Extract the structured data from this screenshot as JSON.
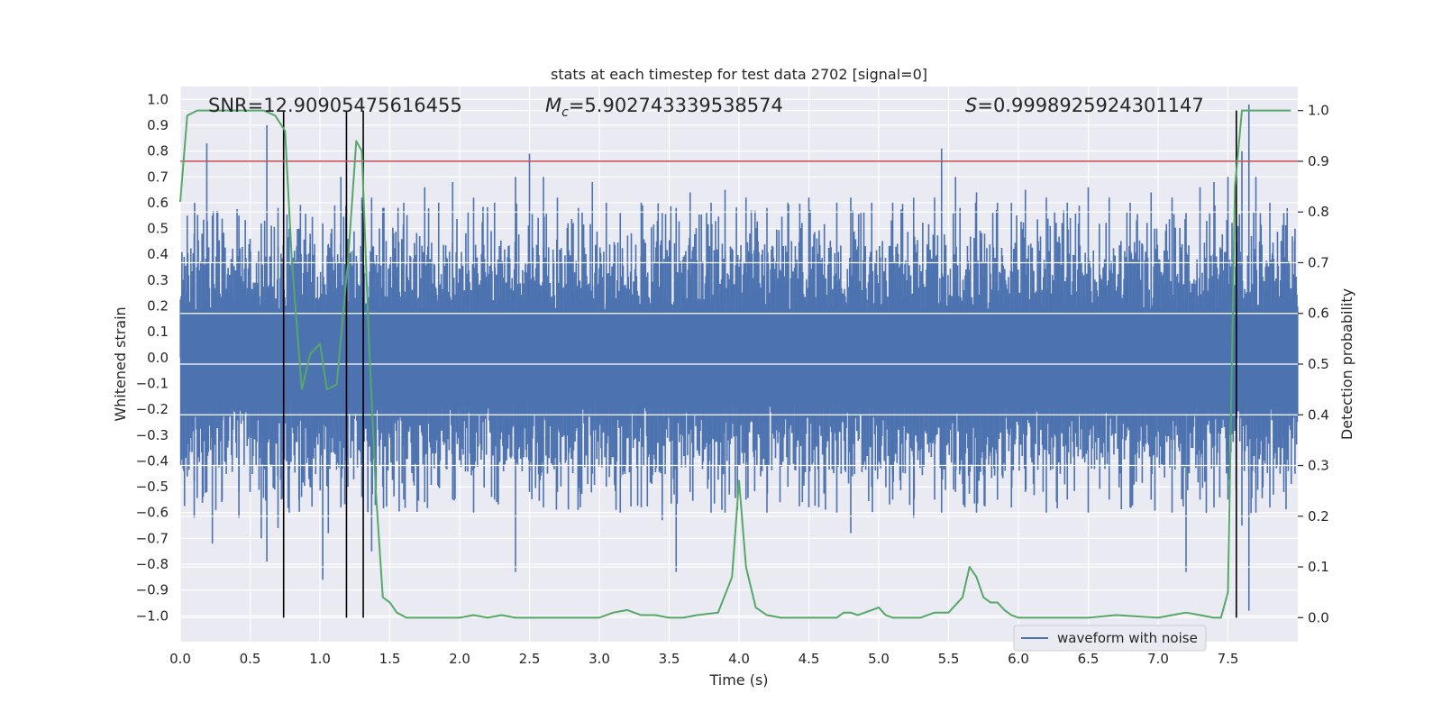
{
  "chart_data": {
    "type": "line",
    "title": "stats at each timestep for test data 2702 [signal=0]",
    "xlabel": "Time (s)",
    "ylabel_left": "Whitened strain",
    "ylabel_right": "Detection probability",
    "xlim": [
      0,
      8
    ],
    "ylim_left": [
      -1.1,
      1.05
    ],
    "ylim_right": [
      -0.0474,
      1.0474
    ],
    "x_ticks": [
      0.0,
      0.5,
      1.0,
      1.5,
      2.0,
      2.5,
      3.0,
      3.5,
      4.0,
      4.5,
      5.0,
      5.5,
      6.0,
      6.5,
      7.0,
      7.5
    ],
    "x_tick_labels": [
      "0.0",
      "0.5",
      "1.0",
      "1.5",
      "2.0",
      "2.5",
      "3.0",
      "3.5",
      "4.0",
      "4.5",
      "5.0",
      "5.5",
      "6.0",
      "6.5",
      "7.0",
      "7.5"
    ],
    "y_left_ticks": [
      1.0,
      0.9,
      0.8,
      0.7,
      0.6,
      0.5,
      0.4,
      0.3,
      0.2,
      0.1,
      0.0,
      -0.1,
      -0.2,
      -0.3,
      -0.4,
      -0.5,
      -0.6,
      -0.7,
      -0.8,
      -0.9,
      -1.0
    ],
    "y_left_tick_labels": [
      "1.0",
      "0.9",
      "0.8",
      "0.7",
      "0.6",
      "0.5",
      "0.4",
      "0.3",
      "0.2",
      "0.1",
      "0.0",
      "−0.1",
      "−0.2",
      "−0.3",
      "−0.4",
      "−0.5",
      "−0.6",
      "−0.7",
      "−0.8",
      "−0.9",
      "−1.0"
    ],
    "y_right_ticks": [
      1.0,
      0.9,
      0.8,
      0.7,
      0.6,
      0.5,
      0.4,
      0.3,
      0.2,
      0.1,
      0.0
    ],
    "y_right_tick_labels": [
      "1.0",
      "0.9",
      "0.8",
      "0.7",
      "0.6",
      "0.5",
      "0.4",
      "0.3",
      "0.2",
      "0.1",
      "0.0"
    ],
    "grid": true,
    "legend": {
      "placement": "lower-right",
      "entries": [
        "waveform with noise"
      ]
    },
    "annotations": {
      "snr_text": "SNR=12.90905475616455",
      "mc_symbol": "M",
      "mc_subscript": "c",
      "mc_value": "=5.902743339538574",
      "s_symbol": "S",
      "s_value": "=0.9998925924301147"
    },
    "threshold_line": {
      "axis": "right",
      "value": 0.9,
      "color": "#c44e52"
    },
    "vertical_markers": [
      0.74,
      1.19,
      1.31,
      7.56
    ],
    "waveform": {
      "name": "waveform with noise",
      "axis": "left",
      "color": "#4c72b0",
      "x_range": [
        0,
        8
      ],
      "envelope_core": 0.33,
      "spikes": [
        [
          0.05,
          0.55,
          -0.46
        ],
        [
          0.1,
          0.48,
          -0.62
        ],
        [
          0.19,
          0.83,
          -0.52
        ],
        [
          0.23,
          0.55,
          -0.72
        ],
        [
          0.3,
          0.48,
          -0.55
        ],
        [
          0.42,
          0.55,
          -0.62
        ],
        [
          0.5,
          0.46,
          -0.52
        ],
        [
          0.58,
          0.52,
          -0.7
        ],
        [
          0.62,
          0.9,
          -0.79
        ],
        [
          0.7,
          0.58,
          -0.66
        ],
        [
          0.78,
          0.5,
          -0.6
        ],
        [
          0.85,
          0.42,
          -0.55
        ],
        [
          0.93,
          0.48,
          -0.5
        ],
        [
          1.02,
          0.52,
          -0.86
        ],
        [
          1.06,
          0.44,
          -0.68
        ],
        [
          1.15,
          0.7,
          -0.58
        ],
        [
          1.2,
          0.46,
          -0.5
        ],
        [
          1.3,
          0.62,
          -0.54
        ],
        [
          1.37,
          0.62,
          -0.75
        ],
        [
          1.45,
          0.58,
          -0.5
        ],
        [
          1.6,
          0.6,
          -0.55
        ],
        [
          1.75,
          0.66,
          -0.56
        ],
        [
          1.85,
          0.6,
          -0.5
        ],
        [
          1.95,
          0.68,
          -0.55
        ],
        [
          2.1,
          0.62,
          -0.6
        ],
        [
          2.25,
          0.6,
          -0.55
        ],
        [
          2.4,
          0.7,
          -0.83
        ],
        [
          2.5,
          0.79,
          -0.52
        ],
        [
          2.6,
          0.7,
          -0.58
        ],
        [
          2.7,
          0.62,
          -0.52
        ],
        [
          2.85,
          0.58,
          -0.52
        ],
        [
          2.95,
          0.68,
          -0.45
        ],
        [
          3.05,
          0.6,
          -0.5
        ],
        [
          3.15,
          0.56,
          -0.6
        ],
        [
          3.3,
          0.6,
          -0.58
        ],
        [
          3.45,
          0.56,
          -0.63
        ],
        [
          3.55,
          0.58,
          -0.83
        ],
        [
          3.65,
          0.64,
          -0.52
        ],
        [
          3.8,
          0.6,
          -0.6
        ],
        [
          3.9,
          0.65,
          -0.6
        ],
        [
          4.05,
          0.62,
          -0.55
        ],
        [
          4.2,
          0.58,
          -0.6
        ],
        [
          4.35,
          0.6,
          -0.5
        ],
        [
          4.5,
          0.62,
          -0.58
        ],
        [
          4.7,
          0.6,
          -0.6
        ],
        [
          4.8,
          0.62,
          -0.68
        ],
        [
          4.95,
          0.6,
          -0.5
        ],
        [
          5.1,
          0.6,
          -0.55
        ],
        [
          5.25,
          0.62,
          -0.62
        ],
        [
          5.4,
          0.62,
          -0.55
        ],
        [
          5.45,
          0.81,
          -0.6
        ],
        [
          5.55,
          0.7,
          -0.52
        ],
        [
          5.7,
          0.64,
          -0.6
        ],
        [
          5.85,
          0.6,
          -0.55
        ],
        [
          5.95,
          0.6,
          -0.58
        ],
        [
          6.05,
          0.65,
          -0.52
        ],
        [
          6.2,
          0.62,
          -0.6
        ],
        [
          6.35,
          0.6,
          -0.55
        ],
        [
          6.5,
          0.66,
          -0.6
        ],
        [
          6.65,
          0.62,
          -0.55
        ],
        [
          6.8,
          0.6,
          -0.58
        ],
        [
          6.95,
          0.64,
          -0.55
        ],
        [
          7.1,
          0.62,
          -0.6
        ],
        [
          7.2,
          0.56,
          -0.83
        ],
        [
          7.3,
          0.66,
          -0.55
        ],
        [
          7.4,
          0.68,
          -0.58
        ],
        [
          7.5,
          0.7,
          -0.55
        ],
        [
          7.6,
          0.8,
          -0.65
        ],
        [
          7.65,
          0.98,
          -0.98
        ],
        [
          7.7,
          0.7,
          -0.6
        ],
        [
          7.8,
          0.6,
          -0.58
        ],
        [
          7.9,
          0.56,
          -0.52
        ],
        [
          7.98,
          0.5,
          -0.45
        ]
      ]
    },
    "probability": {
      "name": "Detection probability",
      "axis": "right",
      "color": "#55a868",
      "x": [
        0.0,
        0.05,
        0.12,
        0.2,
        0.4,
        0.6,
        0.68,
        0.75,
        0.8,
        0.87,
        0.93,
        1.0,
        1.05,
        1.12,
        1.2,
        1.26,
        1.3,
        1.35,
        1.4,
        1.45,
        1.5,
        1.55,
        1.62,
        1.7,
        1.8,
        1.9,
        2.0,
        2.1,
        2.2,
        2.3,
        2.4,
        2.5,
        2.6,
        2.8,
        3.0,
        3.1,
        3.2,
        3.3,
        3.4,
        3.5,
        3.6,
        3.7,
        3.85,
        3.95,
        4.0,
        4.05,
        4.12,
        4.2,
        4.3,
        4.5,
        4.7,
        4.75,
        4.8,
        4.85,
        4.9,
        4.95,
        5.0,
        5.05,
        5.1,
        5.2,
        5.3,
        5.4,
        5.5,
        5.6,
        5.65,
        5.7,
        5.75,
        5.8,
        5.85,
        5.9,
        5.95,
        6.0,
        6.1,
        6.3,
        6.5,
        6.7,
        7.0,
        7.1,
        7.2,
        7.3,
        7.4,
        7.45,
        7.5,
        7.55,
        7.6,
        7.65,
        7.7,
        7.8,
        7.95
      ],
      "y": [
        0.82,
        0.99,
        1.0,
        1.0,
        1.0,
        1.0,
        0.99,
        0.96,
        0.7,
        0.45,
        0.52,
        0.54,
        0.45,
        0.46,
        0.7,
        0.94,
        0.92,
        0.55,
        0.25,
        0.04,
        0.03,
        0.01,
        0.0,
        0.0,
        0.0,
        0.0,
        0.0,
        0.005,
        0.0,
        0.005,
        0.0,
        0.0,
        0.0,
        0.0,
        0.0,
        0.01,
        0.015,
        0.005,
        0.005,
        0.0,
        0.0,
        0.005,
        0.01,
        0.08,
        0.27,
        0.1,
        0.02,
        0.005,
        0.0,
        0.0,
        0.0,
        0.01,
        0.01,
        0.005,
        0.01,
        0.015,
        0.02,
        0.005,
        0.0,
        0.0,
        0.0,
        0.01,
        0.01,
        0.04,
        0.1,
        0.08,
        0.04,
        0.03,
        0.03,
        0.015,
        0.005,
        0.0,
        0.0,
        0.0,
        0.0,
        0.005,
        0.0,
        0.005,
        0.01,
        0.005,
        0.0,
        0.0,
        0.05,
        0.85,
        1.0,
        1.0,
        1.0,
        1.0,
        1.0
      ]
    }
  }
}
